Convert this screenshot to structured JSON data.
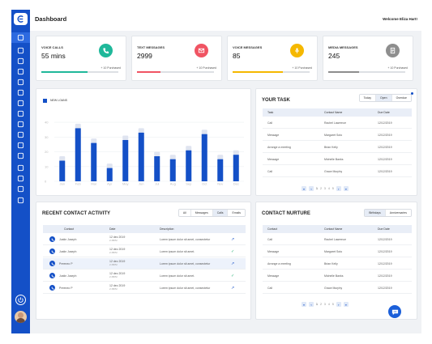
{
  "header": {
    "title": "Dashboard",
    "welcome": "Welcome Eliza Hart!"
  },
  "sidebar": {
    "icons": [
      "dashboard-icon",
      "user-icon",
      "clipboard-icon",
      "card-icon",
      "list-icon",
      "tag-icon",
      "box-icon",
      "grid-icon",
      "bank-icon",
      "chart-icon",
      "chat-icon",
      "monitor-icon",
      "calendar-icon",
      "pen-icon",
      "users-icon",
      "settings-icon"
    ],
    "bottom_icons": [
      "power-icon",
      "avatar"
    ]
  },
  "stats": [
    {
      "label": "VOICE CALLS",
      "value": "55 mins",
      "purchased": "+ 10 Purchased",
      "color": "#1fb89a",
      "fill": 0.6,
      "icon": "phone-icon"
    },
    {
      "label": "TEXT MESSAGES",
      "value": "2999",
      "purchased": "+ 10 Purchased",
      "color": "#f05463",
      "fill": 0.3,
      "icon": "mail-icon"
    },
    {
      "label": "VOICE MESSAGES",
      "value": "85",
      "purchased": "+ 10 Purchased",
      "color": "#f5b800",
      "fill": 0.65,
      "icon": "mic-icon"
    },
    {
      "label": "MEDIA MESSAGES",
      "value": "245",
      "purchased": "+ 10 Purchased",
      "color": "#8e8e8e",
      "fill": 0.4,
      "icon": "document-icon"
    }
  ],
  "chart_data": {
    "type": "bar",
    "legend": "NEW LOANS",
    "categories": [
      "Jan",
      "Feb",
      "Mar",
      "Apr",
      "May",
      "Jun",
      "Jul",
      "Aug",
      "Sep",
      "Oct",
      "Nov",
      "Dec"
    ],
    "values": [
      14,
      36,
      26,
      9,
      28,
      33,
      17,
      15,
      21,
      32,
      15,
      18
    ],
    "totals": [
      17,
      39,
      29,
      12,
      31,
      36,
      20,
      18,
      24,
      35,
      18,
      21
    ],
    "ylim": [
      0,
      45
    ],
    "yticks": [
      "40",
      "30",
      "20",
      "10",
      "0"
    ],
    "grid": true
  },
  "task": {
    "title": "YOUR TASK",
    "tabs": [
      "Today",
      "Open",
      "Overdue"
    ],
    "active_tab": 1,
    "columns": [
      "Task",
      "Contact Name",
      "Due Date"
    ],
    "rows": [
      [
        "Call",
        "Rachel Lawrence",
        "12/12/2019"
      ],
      [
        "Message",
        "Margaret Soto",
        "12/12/2019"
      ],
      [
        "Arrange a meeting",
        "Brian Kelly",
        "12/12/2019"
      ],
      [
        "Message",
        "Michelle Banks",
        "12/12/2019"
      ],
      [
        "Call",
        "Grace Murphy",
        "12/12/2019"
      ]
    ],
    "pages": [
      "1",
      "2",
      "3",
      "4",
      "5"
    ]
  },
  "activity": {
    "title": "RECENT CONTACT ACTIVITY",
    "tabs": [
      "All",
      "Messages",
      "Calls",
      "Emails"
    ],
    "active_tab": 2,
    "columns": [
      "Contact",
      "Date",
      "Description"
    ],
    "rows": [
      {
        "name": "Justin Joseph",
        "date": "12 dec 2019",
        "time": "2:45PM",
        "desc": "Lorem ipsum dolor sit amet, consectetur",
        "status": "↗"
      },
      {
        "name": "Justin Joseph",
        "date": "12 dec 2019",
        "time": "2:45PM",
        "desc": "Lorem ipsum dolor sit amet.",
        "status": "✓"
      },
      {
        "name": "Preeneo P",
        "date": "12 dec 2019",
        "time": "2:45PM",
        "desc": "Lorem ipsum dolor sit amet, consectetur",
        "status": "↗"
      },
      {
        "name": "Justin Joseph",
        "date": "12 dec 2019",
        "time": "2:45PM",
        "desc": "Lorem ipsum dolor sit amet.",
        "status": "✓"
      },
      {
        "name": "Preeneo P",
        "date": "12 dec 2019",
        "time": "2:45PM",
        "desc": "Lorem ipsum dolor sit amet, consectetur",
        "status": "↗"
      }
    ]
  },
  "nurture": {
    "title": "CONTACT NURTURE",
    "tabs": [
      "Birthdays",
      "Anniversaries"
    ],
    "active_tab": 0,
    "columns": [
      "Contact",
      "Contact Name",
      "Due Date"
    ],
    "rows": [
      [
        "Call",
        "Rachel Lawrence",
        "12/12/2019"
      ],
      [
        "Message",
        "Margaret Soto",
        "12/12/2019"
      ],
      [
        "Arrange a meeting",
        "Brian Kelly",
        "12/12/2019"
      ],
      [
        "Message",
        "Michelle Banks",
        "12/12/2019"
      ],
      [
        "Call",
        "Grace Murphy",
        "12/12/2019"
      ]
    ],
    "pages": [
      "1",
      "2",
      "3",
      "4",
      "5"
    ]
  },
  "colors": {
    "primary": "#1450c7",
    "bar_top": "#dfe4f0",
    "check": "#2db37a",
    "arrow": "#1450c7"
  }
}
